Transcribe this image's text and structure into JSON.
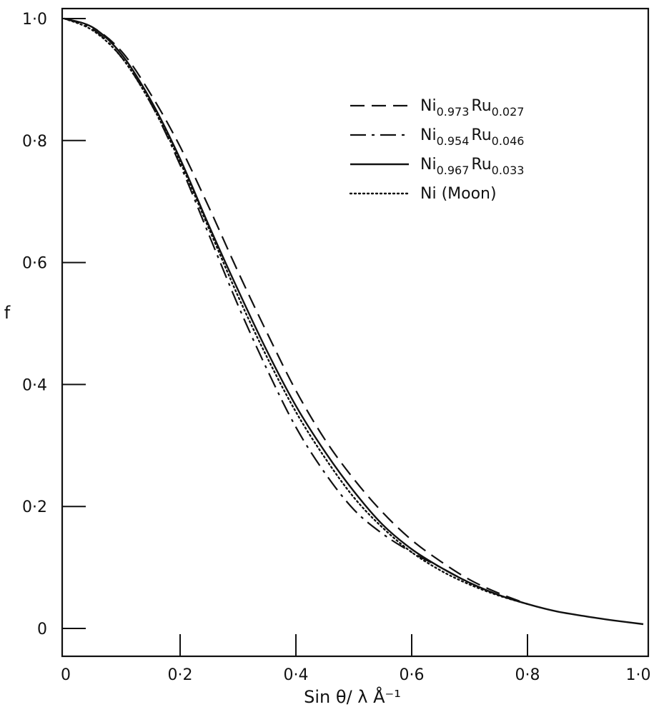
{
  "chart_data": {
    "type": "line",
    "title": "",
    "xlabel": "Sin θ/ λ Å⁻¹",
    "ylabel": "f",
    "xlim": [
      0,
      1.0
    ],
    "ylim": [
      -0.05,
      1.05
    ],
    "grid": false,
    "legend_position": "top-right",
    "x_ticks": [
      {
        "value": 0,
        "label": "0"
      },
      {
        "value": 0.2,
        "label": "0·2"
      },
      {
        "value": 0.4,
        "label": "0·4"
      },
      {
        "value": 0.6,
        "label": "0·6"
      },
      {
        "value": 0.8,
        "label": "0·8"
      },
      {
        "value": 1.0,
        "label": "1·0"
      }
    ],
    "y_ticks": [
      {
        "value": 0,
        "label": "0"
      },
      {
        "value": 0.2,
        "label": "0·2"
      },
      {
        "value": 0.4,
        "label": "0·4"
      },
      {
        "value": 0.6,
        "label": "0·6"
      },
      {
        "value": 0.8,
        "label": "0·8"
      },
      {
        "value": 1.0,
        "label": "1·0"
      }
    ],
    "series": [
      {
        "name": "Ni0.973Ru0.027",
        "legend": {
          "base1": "Ni",
          "sub1": "0.973",
          "base2": "Ru",
          "sub2": "0.027"
        },
        "style": "dashed",
        "x": [
          0,
          0.05,
          0.1,
          0.15,
          0.2,
          0.25,
          0.3,
          0.35,
          0.4,
          0.45,
          0.5,
          0.55,
          0.6,
          0.65,
          0.7,
          0.75,
          0.8
        ],
        "y": [
          1.0,
          0.985,
          0.945,
          0.875,
          0.79,
          0.69,
          0.585,
          0.485,
          0.39,
          0.31,
          0.245,
          0.19,
          0.145,
          0.11,
          0.08,
          0.058,
          0.04
        ]
      },
      {
        "name": "Ni0.954Ru0.046",
        "legend": {
          "base1": "Ni",
          "sub1": "0.954",
          "base2": "Ru",
          "sub2": "0.046"
        },
        "style": "dashdot",
        "x": [
          0,
          0.05,
          0.1,
          0.15,
          0.2,
          0.25,
          0.3,
          0.35,
          0.4,
          0.45,
          0.5,
          0.55,
          0.6,
          0.65,
          0.7,
          0.75,
          0.8
        ],
        "y": [
          1.0,
          0.982,
          0.935,
          0.86,
          0.76,
          0.645,
          0.53,
          0.425,
          0.33,
          0.255,
          0.195,
          0.155,
          0.125,
          0.1,
          0.075,
          0.055,
          0.04
        ]
      },
      {
        "name": "Ni0.967Ru0.033",
        "legend": {
          "base1": "Ni",
          "sub1": "0.967",
          "base2": "Ru",
          "sub2": "0.033"
        },
        "style": "solid",
        "x": [
          0,
          0.05,
          0.1,
          0.15,
          0.2,
          0.25,
          0.3,
          0.35,
          0.4,
          0.45,
          0.5,
          0.55,
          0.6,
          0.65,
          0.7,
          0.75,
          0.8,
          0.85,
          0.9,
          0.95,
          1.0
        ],
        "y": [
          1.0,
          0.985,
          0.94,
          0.865,
          0.77,
          0.66,
          0.555,
          0.455,
          0.365,
          0.29,
          0.225,
          0.17,
          0.13,
          0.1,
          0.075,
          0.055,
          0.04,
          0.028,
          0.02,
          0.013,
          0.007
        ]
      },
      {
        "name": "Ni (Moon)",
        "legend": {
          "base1": "Ni (Moon)",
          "sub1": "",
          "base2": "",
          "sub2": ""
        },
        "style": "dotted",
        "x": [
          0,
          0.05,
          0.1,
          0.15,
          0.2,
          0.25,
          0.3,
          0.35,
          0.4,
          0.45,
          0.5,
          0.55,
          0.6,
          0.65,
          0.7,
          0.75,
          0.8
        ],
        "y": [
          1.0,
          0.98,
          0.935,
          0.86,
          0.765,
          0.655,
          0.545,
          0.445,
          0.355,
          0.28,
          0.215,
          0.165,
          0.125,
          0.095,
          0.072,
          0.054,
          0.04
        ]
      }
    ]
  }
}
